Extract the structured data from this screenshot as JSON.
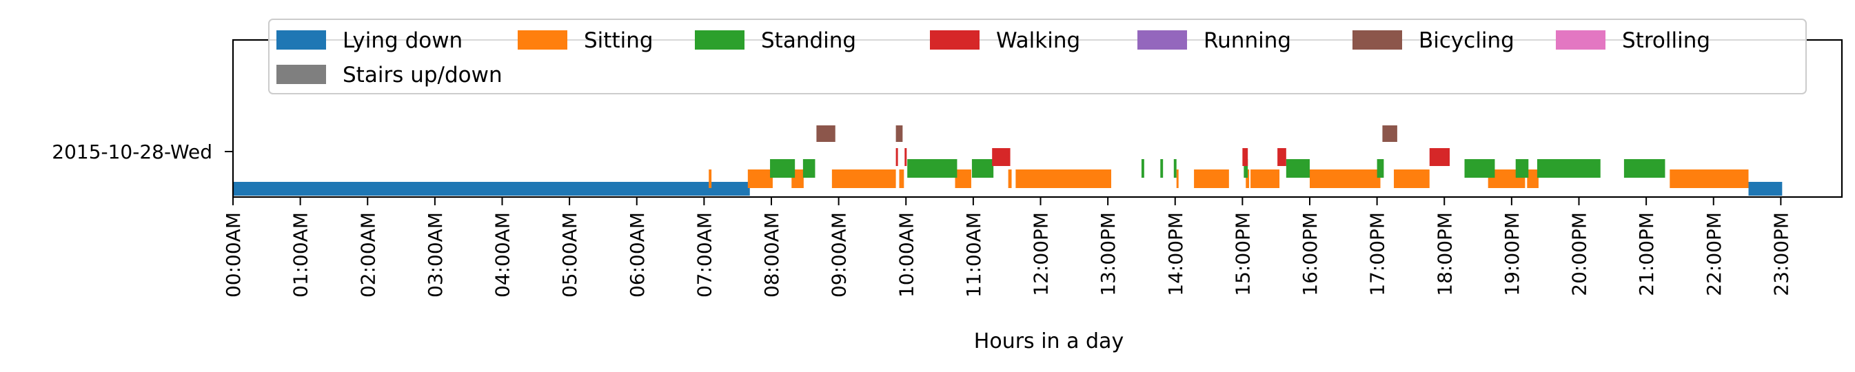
{
  "chart_data": {
    "type": "timeline",
    "title": "",
    "xlabel": "Hours in a day",
    "ylabel": "",
    "x_unit": "hours",
    "xlim": [
      0,
      24
    ],
    "xticks": [
      "00:00AM",
      "01:00AM",
      "02:00AM",
      "03:00AM",
      "04:00AM",
      "05:00AM",
      "06:00AM",
      "07:00AM",
      "08:00AM",
      "09:00AM",
      "10:00AM",
      "11:00AM",
      "12:00PM",
      "13:00PM",
      "14:00PM",
      "15:00PM",
      "16:00PM",
      "17:00PM",
      "18:00PM",
      "19:00PM",
      "20:00PM",
      "21:00PM",
      "22:00PM",
      "23:00PM"
    ],
    "yticks": [
      "2015-10-28-Wed"
    ],
    "legend": {
      "position": "top",
      "columns": 7
    },
    "grid": false,
    "series": [
      {
        "name": "Lying down",
        "color": "#1f77b4",
        "intervals": [
          [
            0.0,
            7.68
          ],
          [
            22.52,
            23.02
          ]
        ]
      },
      {
        "name": "Sitting",
        "color": "#ff7f0e",
        "intervals": [
          [
            7.07,
            7.11
          ],
          [
            7.65,
            8.02
          ],
          [
            8.3,
            8.48
          ],
          [
            8.9,
            9.85
          ],
          [
            9.9,
            9.97
          ],
          [
            10.73,
            10.97
          ],
          [
            11.52,
            11.57
          ],
          [
            11.63,
            13.05
          ],
          [
            14.02,
            14.05
          ],
          [
            14.28,
            14.8
          ],
          [
            15.05,
            15.1
          ],
          [
            15.12,
            15.55
          ],
          [
            16.0,
            17.05
          ],
          [
            17.25,
            17.78
          ],
          [
            18.65,
            19.2
          ],
          [
            19.23,
            19.4
          ],
          [
            21.35,
            22.52
          ]
        ]
      },
      {
        "name": "Standing",
        "color": "#2ca02c",
        "intervals": [
          [
            7.98,
            8.35
          ],
          [
            8.47,
            8.65
          ],
          [
            10.02,
            10.76
          ],
          [
            10.98,
            11.3
          ],
          [
            13.5,
            13.54
          ],
          [
            13.78,
            13.82
          ],
          [
            13.98,
            14.02
          ],
          [
            15.02,
            15.08
          ],
          [
            15.65,
            16.0
          ],
          [
            17.0,
            17.1
          ],
          [
            18.3,
            18.75
          ],
          [
            19.06,
            19.25
          ],
          [
            19.38,
            20.32
          ],
          [
            20.67,
            21.28
          ]
        ]
      },
      {
        "name": "Walking",
        "color": "#d62728",
        "intervals": [
          [
            9.85,
            9.87
          ],
          [
            9.98,
            10.0
          ],
          [
            11.28,
            11.55
          ],
          [
            15.0,
            15.08
          ],
          [
            15.52,
            15.65
          ],
          [
            17.78,
            18.08
          ]
        ]
      },
      {
        "name": "Running",
        "color": "#9467bd",
        "intervals": []
      },
      {
        "name": "Bicycling",
        "color": "#8c564b",
        "intervals": [
          [
            8.67,
            8.95
          ],
          [
            9.85,
            9.95
          ],
          [
            17.08,
            17.3
          ]
        ]
      },
      {
        "name": "Strolling",
        "color": "#e377c2",
        "intervals": []
      },
      {
        "name": "Stairs up/down",
        "color": "#7f7f7f",
        "intervals": []
      }
    ]
  }
}
